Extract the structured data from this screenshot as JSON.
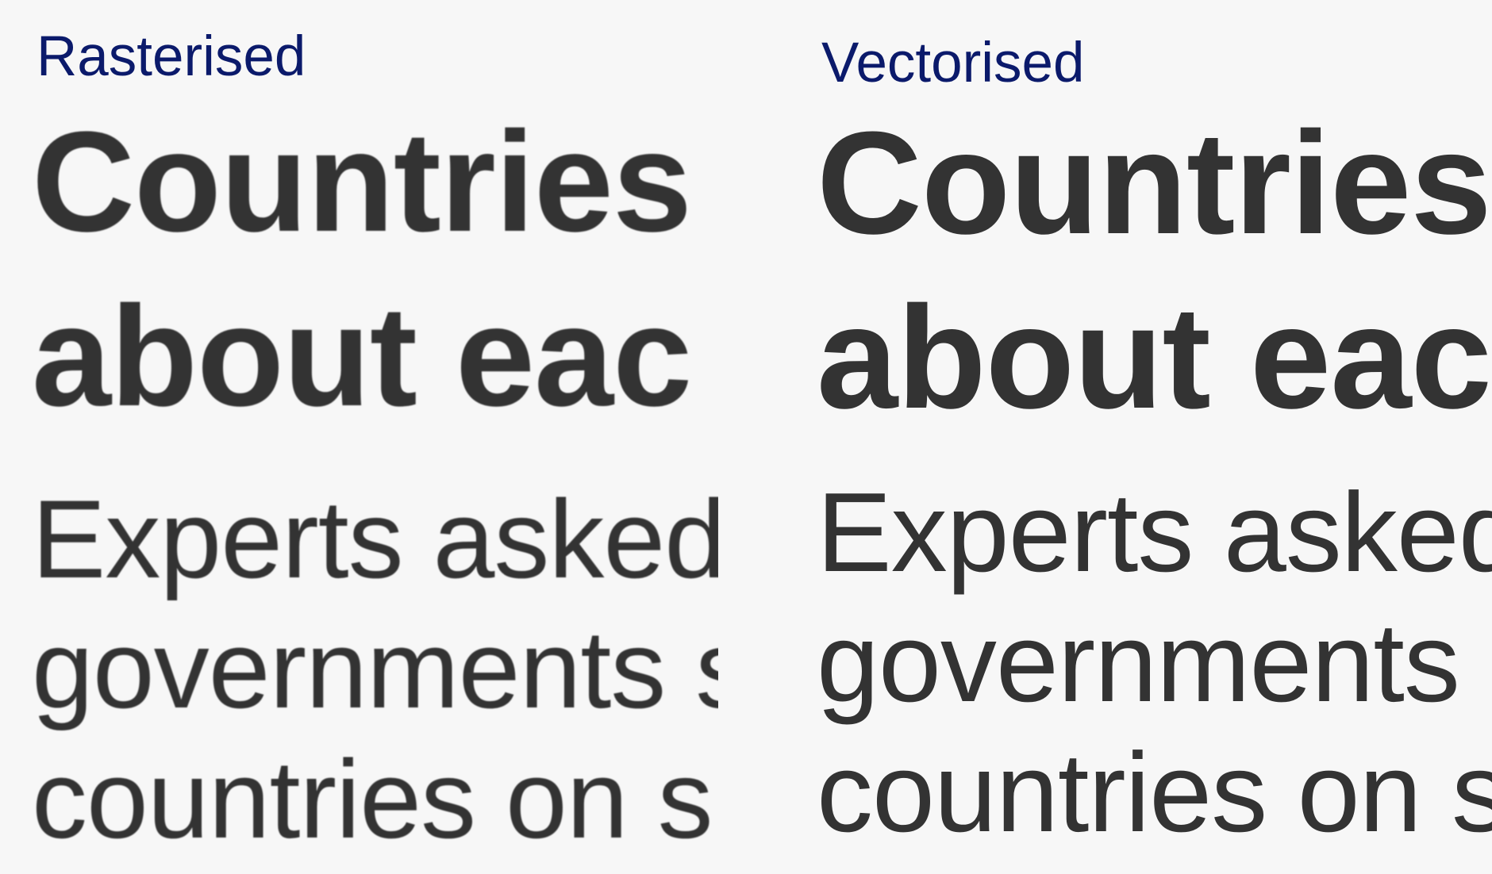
{
  "rasterised": {
    "label": "Rasterised",
    "headline_lines": [
      "Countries",
      "about eac"
    ],
    "body_lines": [
      "Experts asked",
      "governments s",
      "countries on s"
    ]
  },
  "vectorised": {
    "label": "Vectorised",
    "headline_lines": [
      "Countries",
      "about each"
    ],
    "body_lines": [
      "Experts asked",
      "governments s",
      "countries on s"
    ]
  },
  "colors": {
    "background": "#f7f7f7",
    "label_text": "#0b1a6b",
    "body_text": "#333333"
  }
}
